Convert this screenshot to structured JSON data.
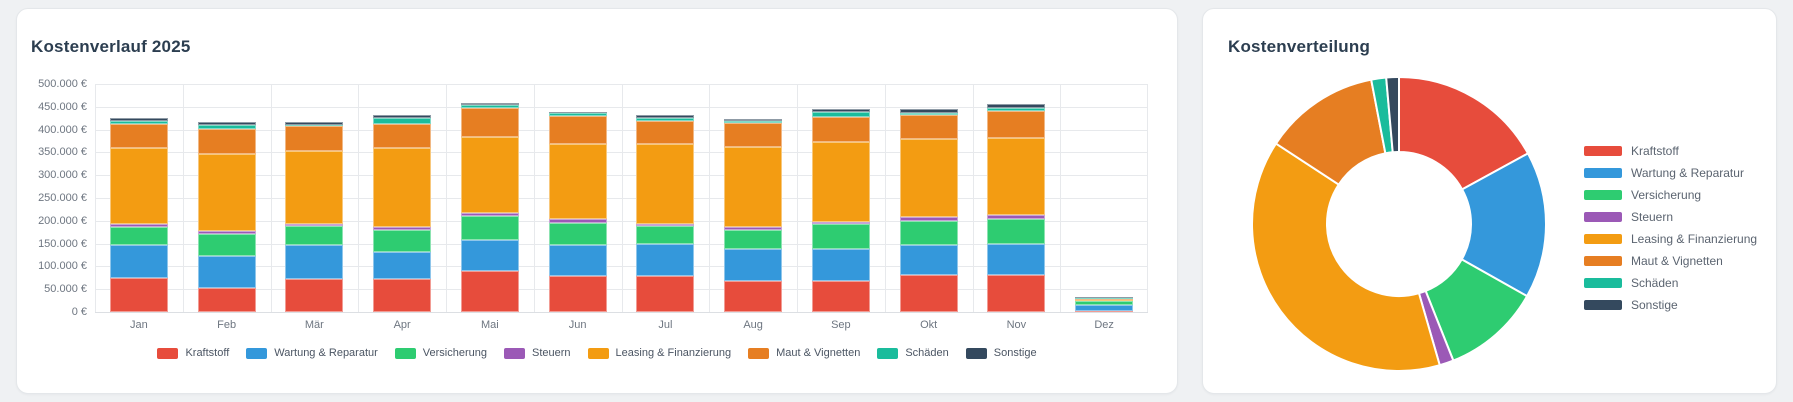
{
  "left_card": {
    "title": "Kostenverlauf 2025",
    "chart_data": {
      "type": "bar",
      "stacked": true,
      "title": "Kostenverlauf 2025",
      "categories": [
        "Jan",
        "Feb",
        "Mär",
        "Apr",
        "Mai",
        "Jun",
        "Jul",
        "Aug",
        "Sep",
        "Okt",
        "Nov",
        "Dez"
      ],
      "series": [
        {
          "name": "Kraftstoff",
          "color": "#e74c3c",
          "values": [
            74000,
            52000,
            73000,
            73000,
            91000,
            78000,
            80000,
            67000,
            69000,
            81000,
            81000,
            2000
          ]
        },
        {
          "name": "Wartung & Reparatur",
          "color": "#3498db",
          "values": [
            74000,
            71000,
            75000,
            59000,
            68000,
            69000,
            70000,
            72000,
            70000,
            67000,
            69000,
            14000
          ]
        },
        {
          "name": "Versicherung",
          "color": "#2ecc71",
          "values": [
            38000,
            49000,
            41000,
            47000,
            52000,
            48000,
            38000,
            41000,
            53000,
            52000,
            54000,
            8000
          ]
        },
        {
          "name": "Steuern",
          "color": "#9b59b6",
          "values": [
            7000,
            6000,
            3000,
            8000,
            6000,
            8000,
            6000,
            6000,
            6000,
            9000,
            9000,
            1000
          ]
        },
        {
          "name": "Leasing & Finanzierung",
          "color": "#f39c12",
          "values": [
            166000,
            168000,
            162000,
            172000,
            167000,
            165000,
            174000,
            176000,
            175000,
            170000,
            168000,
            2000
          ]
        },
        {
          "name": "Maut & Vignetten",
          "color": "#e67e22",
          "values": [
            53000,
            55000,
            55000,
            53000,
            64000,
            63000,
            52000,
            52000,
            54000,
            53000,
            59000,
            2000
          ]
        },
        {
          "name": "Schäden",
          "color": "#1abc9c",
          "values": [
            6000,
            9000,
            2000,
            14000,
            7000,
            5000,
            6000,
            4000,
            11000,
            5000,
            8000,
            2000
          ]
        },
        {
          "name": "Sonstige",
          "color": "#34495e",
          "values": [
            7000,
            7000,
            5000,
            6000,
            3000,
            3000,
            6000,
            6000,
            7000,
            8000,
            8000,
            1000
          ]
        }
      ],
      "ylim": [
        0,
        500000
      ],
      "y_ticks": [
        "500.000 €",
        "450.000 €",
        "400.000 €",
        "350.000 €",
        "300.000 €",
        "250.000 €",
        "200.000 €",
        "150.000 €",
        "100.000 €",
        "50.000 €",
        "0 €"
      ],
      "grid": true,
      "legend_position": "bottom"
    }
  },
  "right_card": {
    "title": "Kostenverteilung",
    "chart_data": {
      "type": "pie",
      "subtype": "doughnut",
      "title": "Kostenverteilung",
      "labels": [
        "Kraftstoff",
        "Wartung & Reparatur",
        "Versicherung",
        "Steuern",
        "Leasing & Finanzierung",
        "Maut & Vignetten",
        "Schäden",
        "Sonstige"
      ],
      "values": [
        821000,
        778000,
        521000,
        75000,
        1865000,
        615000,
        79000,
        67000
      ],
      "percentages": [
        17.0,
        16.1,
        10.8,
        1.6,
        38.7,
        12.8,
        1.6,
        1.4
      ],
      "colors": [
        "#e74c3c",
        "#3498db",
        "#2ecc71",
        "#9b59b6",
        "#f39c12",
        "#e67e22",
        "#1abc9c",
        "#34495e"
      ],
      "legend_position": "right",
      "start_angle_deg": 0
    }
  }
}
